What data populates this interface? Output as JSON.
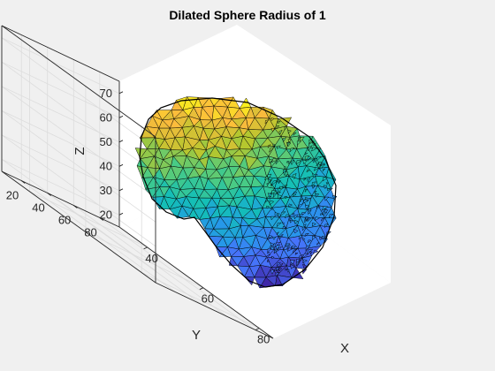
{
  "chart_data": {
    "type": "surface3d",
    "title": "Dilated Sphere Radius of 1",
    "xlabel": "X",
    "ylabel": "Y",
    "zlabel": "Z",
    "x_ticks": [
      40,
      60,
      80
    ],
    "y_ticks": [
      20,
      40,
      60,
      80
    ],
    "z_ticks": [
      20,
      30,
      40,
      50,
      60,
      70
    ],
    "xlim": [
      30,
      85
    ],
    "ylim": [
      5,
      95
    ],
    "zlim": [
      15,
      75
    ],
    "grid": true,
    "colormap": "parula",
    "colormap_colors": [
      "#3e26a8",
      "#4772fa",
      "#2797eb",
      "#13beb8",
      "#48cb86",
      "#b5c72e",
      "#fcba3d",
      "#f9fb15"
    ],
    "surface": "triangulated dilated sphere mesh"
  }
}
